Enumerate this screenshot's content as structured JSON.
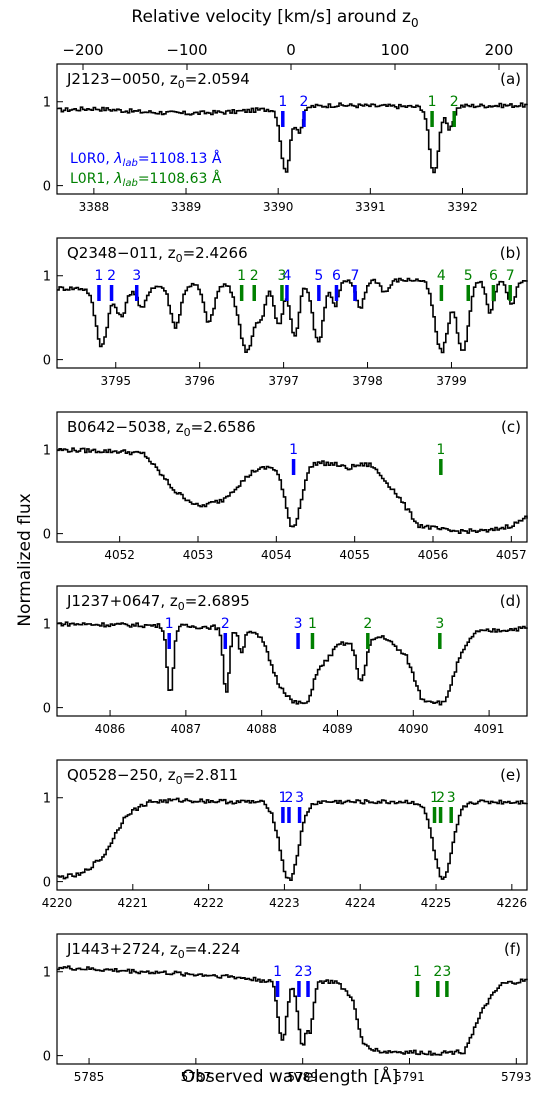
{
  "figure": {
    "top_axis_label": "Relative velocity [km/s] around z",
    "top_axis_label_sub": "0",
    "y_axis_label": "Normalized flux",
    "x_axis_label": "Observed wavelength [Å]",
    "top_ticks": [
      "−200",
      "−100",
      "0",
      "100",
      "200"
    ],
    "line_colors": {
      "L0R0": "#0000ff",
      "L0R1": "#008000"
    },
    "legend": {
      "l0r0_name": "L0R0, ",
      "l0r0_lambda": "λ",
      "l0r0_sub": "lab",
      "l0r0_value": "=1108.13 Å",
      "l0r1_name": "L0R1, ",
      "l0r1_lambda": "λ",
      "l0r1_sub": "lab",
      "l0r1_value": "=1108.63 Å"
    }
  },
  "chart_data": [
    {
      "type": "line",
      "panel": "(a)",
      "qso": "J2123−0050, z",
      "z0": "=2.0594",
      "xlim": [
        3387.6,
        3392.7
      ],
      "ylim": [
        -0.1,
        1.45
      ],
      "xticks": [
        3388,
        3389,
        3390,
        3391,
        3392
      ],
      "yticks": [
        0,
        1
      ],
      "continuum": [
        [
          3387.6,
          0.9
        ],
        [
          3388.0,
          0.92
        ],
        [
          3388.5,
          0.88
        ],
        [
          3389.0,
          0.86
        ],
        [
          3389.5,
          0.88
        ],
        [
          3390.0,
          0.92
        ],
        [
          3390.6,
          0.96
        ],
        [
          3391.0,
          0.95
        ],
        [
          3391.5,
          0.94
        ],
        [
          3392.0,
          0.95
        ],
        [
          3392.7,
          0.96
        ]
      ],
      "absorptions": [
        {
          "center": 3390.07,
          "width": 0.05,
          "depth": 0.82
        },
        {
          "center": 3390.22,
          "width": 0.04,
          "depth": 0.3
        },
        {
          "center": 3391.68,
          "width": 0.05,
          "depth": 0.84
        },
        {
          "center": 3391.85,
          "width": 0.04,
          "depth": 0.3
        }
      ],
      "markers_l0r0": [
        {
          "x": 3390.05,
          "label": "1"
        },
        {
          "x": 3390.28,
          "label": "2"
        }
      ],
      "markers_l0r1": [
        {
          "x": 3391.67,
          "label": "1"
        },
        {
          "x": 3391.91,
          "label": "2"
        }
      ]
    },
    {
      "type": "line",
      "panel": "(b)",
      "qso": "Q2348−011, z",
      "z0": "=2.4266",
      "xlim": [
        3794.3,
        3799.9
      ],
      "ylim": [
        -0.1,
        1.45
      ],
      "xticks": [
        3795,
        3796,
        3797,
        3798,
        3799
      ],
      "yticks": [
        0,
        1
      ],
      "continuum": [
        [
          3794.3,
          0.85
        ],
        [
          3795.0,
          0.85
        ],
        [
          3796.0,
          0.9
        ],
        [
          3797.0,
          0.9
        ],
        [
          3798.0,
          0.95
        ],
        [
          3799.0,
          0.95
        ],
        [
          3799.9,
          0.95
        ]
      ],
      "absorptions": [
        {
          "center": 3794.82,
          "width": 0.07,
          "depth": 0.8
        },
        {
          "center": 3795.05,
          "width": 0.06,
          "depth": 0.4
        },
        {
          "center": 3795.3,
          "width": 0.05,
          "depth": 0.3
        },
        {
          "center": 3795.7,
          "width": 0.06,
          "depth": 0.55
        },
        {
          "center": 3796.1,
          "width": 0.06,
          "depth": 0.5
        },
        {
          "center": 3796.55,
          "width": 0.09,
          "depth": 0.88
        },
        {
          "center": 3796.72,
          "width": 0.05,
          "depth": 0.4
        },
        {
          "center": 3796.93,
          "width": 0.05,
          "depth": 0.55
        },
        {
          "center": 3797.12,
          "width": 0.05,
          "depth": 0.7
        },
        {
          "center": 3797.4,
          "width": 0.06,
          "depth": 0.78
        },
        {
          "center": 3797.6,
          "width": 0.04,
          "depth": 0.3
        },
        {
          "center": 3797.9,
          "width": 0.05,
          "depth": 0.35
        },
        {
          "center": 3798.2,
          "width": 0.05,
          "depth": 0.15
        },
        {
          "center": 3798.87,
          "width": 0.08,
          "depth": 0.9
        },
        {
          "center": 3799.12,
          "width": 0.07,
          "depth": 0.9
        },
        {
          "center": 3799.45,
          "width": 0.05,
          "depth": 0.4
        },
        {
          "center": 3799.7,
          "width": 0.05,
          "depth": 0.3
        }
      ],
      "markers_l0r0": [
        {
          "x": 3794.8,
          "label": "1"
        },
        {
          "x": 3794.95,
          "label": "2"
        },
        {
          "x": 3795.25,
          "label": "3"
        },
        {
          "x": 3797.04,
          "label": "4"
        },
        {
          "x": 3797.42,
          "label": "5"
        },
        {
          "x": 3797.63,
          "label": "6"
        },
        {
          "x": 3797.85,
          "label": "7"
        }
      ],
      "markers_l0r1": [
        {
          "x": 3796.5,
          "label": "1"
        },
        {
          "x": 3796.65,
          "label": "2"
        },
        {
          "x": 3796.98,
          "label": "3"
        },
        {
          "x": 3798.88,
          "label": "4"
        },
        {
          "x": 3799.2,
          "label": "5"
        },
        {
          "x": 3799.5,
          "label": "6"
        },
        {
          "x": 3799.7,
          "label": "7"
        }
      ]
    },
    {
      "type": "line",
      "panel": "(c)",
      "qso": "B0642−5038, z",
      "z0": "=2.6586",
      "xlim": [
        4051.2,
        4057.2
      ],
      "ylim": [
        -0.1,
        1.45
      ],
      "xticks": [
        4052,
        4053,
        4054,
        4055,
        4056,
        4057
      ],
      "yticks": [
        0,
        1
      ],
      "continuum": [
        [
          4051.2,
          1.0
        ],
        [
          4052.0,
          0.98
        ],
        [
          4052.3,
          0.95
        ],
        [
          4052.7,
          0.5
        ],
        [
          4053.0,
          0.32
        ],
        [
          4053.3,
          0.4
        ],
        [
          4053.7,
          0.75
        ],
        [
          4054.0,
          0.82
        ],
        [
          4054.5,
          0.85
        ],
        [
          4054.8,
          0.82
        ],
        [
          4055.2,
          0.82
        ],
        [
          4055.5,
          0.5
        ],
        [
          4055.8,
          0.1
        ],
        [
          4056.2,
          0.03
        ],
        [
          4056.7,
          0.03
        ],
        [
          4057.0,
          0.1
        ],
        [
          4057.2,
          0.2
        ]
      ],
      "absorptions": [
        {
          "center": 4054.2,
          "width": 0.1,
          "depth": 0.9
        },
        {
          "center": 4054.9,
          "width": 0.06,
          "depth": 0.05
        }
      ],
      "markers_l0r0": [
        {
          "x": 4054.22,
          "label": "1"
        }
      ],
      "markers_l0r1": [
        {
          "x": 4056.1,
          "label": "1"
        }
      ]
    },
    {
      "type": "line",
      "panel": "(d)",
      "qso": "J1237+0647, z",
      "z0": "=2.6895",
      "xlim": [
        4085.3,
        4091.5
      ],
      "ylim": [
        -0.1,
        1.45
      ],
      "xticks": [
        4086,
        4087,
        4088,
        4089,
        4090,
        4091
      ],
      "yticks": [
        0,
        1
      ],
      "continuum": [
        [
          4085.3,
          1.0
        ],
        [
          4086.5,
          0.98
        ],
        [
          4087.8,
          0.95
        ],
        [
          4088.0,
          0.8
        ],
        [
          4088.2,
          0.3
        ],
        [
          4088.4,
          0.06
        ],
        [
          4088.6,
          0.05
        ],
        [
          4088.7,
          0.4
        ],
        [
          4089.0,
          0.75
        ],
        [
          4089.6,
          0.85
        ],
        [
          4089.9,
          0.6
        ],
        [
          4090.1,
          0.1
        ],
        [
          4090.4,
          0.05
        ],
        [
          4090.6,
          0.6
        ],
        [
          4090.8,
          0.9
        ],
        [
          4091.5,
          0.95
        ]
      ],
      "absorptions": [
        {
          "center": 4086.78,
          "width": 0.04,
          "depth": 0.85
        },
        {
          "center": 4087.52,
          "width": 0.04,
          "depth": 0.8
        },
        {
          "center": 4087.72,
          "width": 0.04,
          "depth": 0.3
        },
        {
          "center": 4089.3,
          "width": 0.06,
          "depth": 0.6
        }
      ],
      "markers_l0r0": [
        {
          "x": 4086.78,
          "label": "1"
        },
        {
          "x": 4087.52,
          "label": "2"
        },
        {
          "x": 4088.48,
          "label": "3"
        }
      ],
      "markers_l0r1": [
        {
          "x": 4088.67,
          "label": "1"
        },
        {
          "x": 4089.4,
          "label": "2"
        },
        {
          "x": 4090.35,
          "label": "3"
        }
      ]
    },
    {
      "type": "line",
      "panel": "(e)",
      "qso": "Q0528−250, z",
      "z0": "=2.811",
      "xlim": [
        4220.0,
        4226.2
      ],
      "ylim": [
        -0.1,
        1.45
      ],
      "xticks": [
        4220,
        4221,
        4222,
        4223,
        4224,
        4225,
        4226
      ],
      "yticks": [
        0,
        1
      ],
      "continuum": [
        [
          4220.0,
          0.05
        ],
        [
          4220.3,
          0.08
        ],
        [
          4220.6,
          0.3
        ],
        [
          4220.9,
          0.8
        ],
        [
          4221.2,
          0.95
        ],
        [
          4221.6,
          0.97
        ],
        [
          4222.4,
          0.95
        ],
        [
          4224.0,
          0.95
        ],
        [
          4226.2,
          0.95
        ]
      ],
      "absorptions": [
        {
          "center": 4223.05,
          "width": 0.12,
          "depth": 0.98
        },
        {
          "center": 4225.08,
          "width": 0.12,
          "depth": 0.98
        }
      ],
      "markers_l0r0": [
        {
          "x": 4222.98,
          "label": "1"
        },
        {
          "x": 4223.06,
          "label": "2"
        },
        {
          "x": 4223.2,
          "label": "3"
        }
      ],
      "markers_l0r1": [
        {
          "x": 4224.98,
          "label": "1"
        },
        {
          "x": 4225.06,
          "label": "2"
        },
        {
          "x": 4225.2,
          "label": "3"
        }
      ]
    },
    {
      "type": "line",
      "panel": "(f)",
      "qso": "J1443+2724, z",
      "z0": "=4.224",
      "xlim": [
        5784.4,
        5793.2
      ],
      "ylim": [
        -0.1,
        1.45
      ],
      "xticks": [
        5785,
        5787,
        5789,
        5791,
        5793
      ],
      "yticks": [
        0,
        1
      ],
      "continuum": [
        [
          5784.4,
          1.05
        ],
        [
          5786.0,
          1.0
        ],
        [
          5787.5,
          0.95
        ],
        [
          5788.2,
          0.9
        ],
        [
          5789.6,
          0.88
        ],
        [
          5789.9,
          0.7
        ],
        [
          5790.1,
          0.15
        ],
        [
          5790.4,
          0.05
        ],
        [
          5791.5,
          0.03
        ],
        [
          5792.0,
          0.05
        ],
        [
          5792.4,
          0.6
        ],
        [
          5792.7,
          0.85
        ],
        [
          5793.2,
          0.9
        ]
      ],
      "absorptions": [
        {
          "center": 5788.6,
          "width": 0.08,
          "depth": 0.8
        },
        {
          "center": 5788.98,
          "width": 0.08,
          "depth": 0.85
        },
        {
          "center": 5789.12,
          "width": 0.06,
          "depth": 0.6
        }
      ],
      "markers_l0r0": [
        {
          "x": 5788.53,
          "label": "1"
        },
        {
          "x": 5788.93,
          "label": "2"
        },
        {
          "x": 5789.1,
          "label": "3"
        }
      ],
      "markers_l0r1": [
        {
          "x": 5791.15,
          "label": "1"
        },
        {
          "x": 5791.53,
          "label": "2"
        },
        {
          "x": 5791.7,
          "label": "3"
        }
      ]
    }
  ]
}
